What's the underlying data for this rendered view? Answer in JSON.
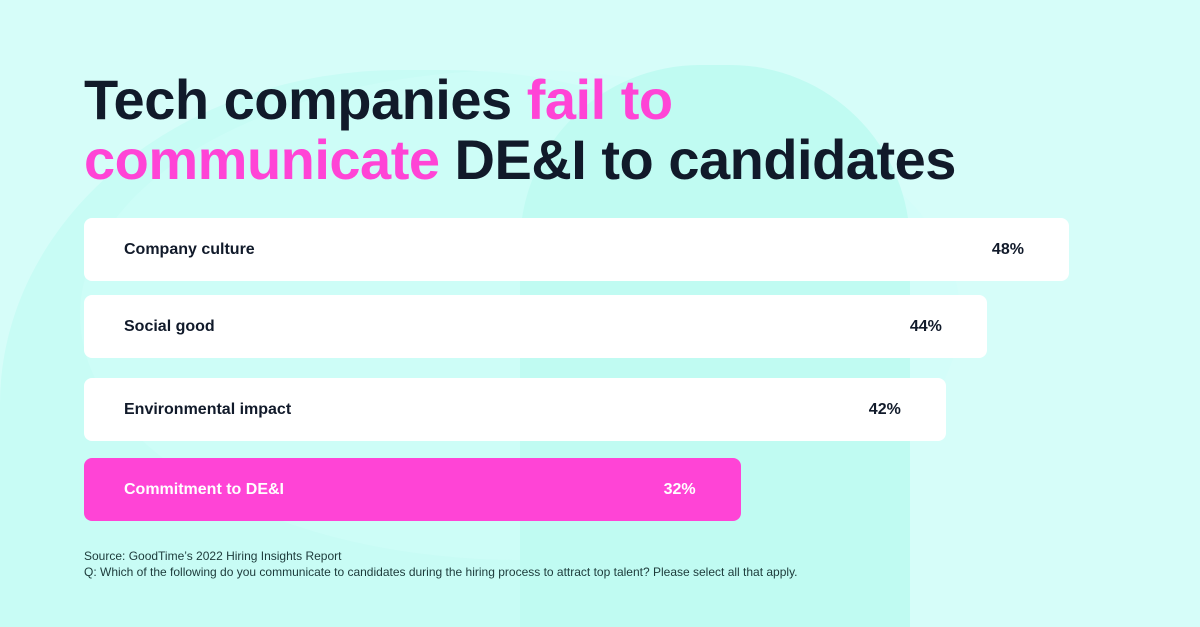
{
  "title": {
    "part1": "Tech companies ",
    "highlight1": "fail to",
    "highlight2": "communicate",
    "part2": " DE&I to candidates"
  },
  "colors": {
    "highlight": "#ff44d6",
    "bar": "#ffffff",
    "text": "#111a2a",
    "background": "#d6fdf9"
  },
  "chart_data": {
    "type": "bar",
    "orientation": "horizontal",
    "categories": [
      "Company culture",
      "Social good",
      "Environmental impact",
      "Commitment to DE&I"
    ],
    "values": [
      48,
      44,
      42,
      32
    ],
    "labels": [
      "48%",
      "44%",
      "42%",
      "32%"
    ],
    "highlighted": "Commitment to DE&I",
    "unit": "%"
  },
  "footer": {
    "source": "Source: GoodTime’s 2022 Hiring Insights Report",
    "question": "Q: Which of the following do you communicate to candidates during the hiring process to attract top talent? Please select all that apply."
  }
}
